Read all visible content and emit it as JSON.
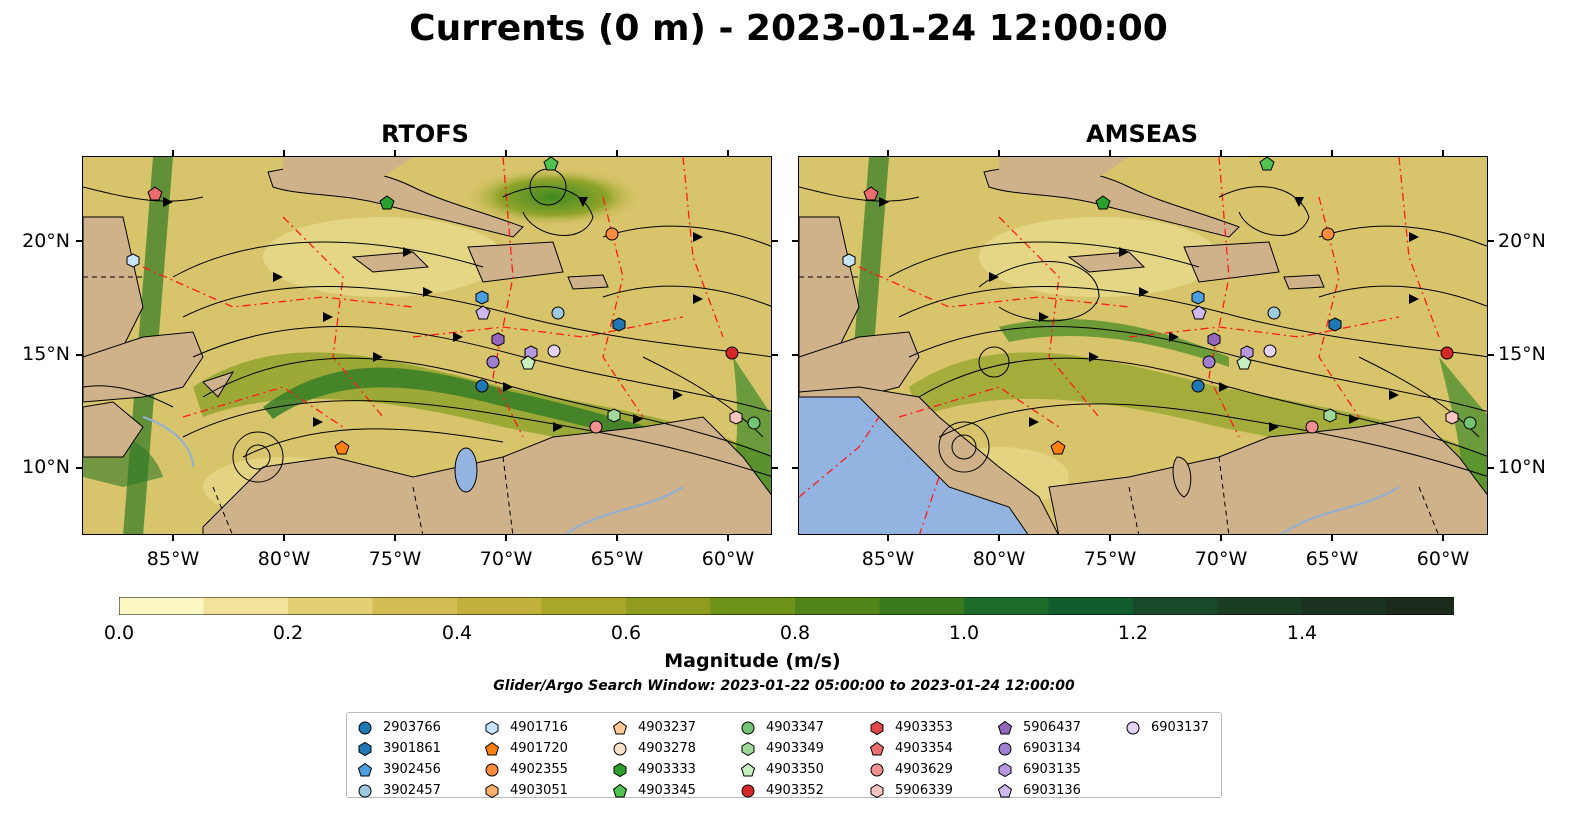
{
  "title": "Currents (0 m) - 2023-01-24 12:00:00",
  "panels": [
    {
      "title": "RTOFS"
    },
    {
      "title": "AMSEAS"
    }
  ],
  "lon_ticks": [
    "85°W",
    "80°W",
    "75°W",
    "70°W",
    "65°W",
    "60°W"
  ],
  "lat_ticks": [
    "20°N",
    "15°N",
    "10°N"
  ],
  "colorbar": {
    "label": "Magnitude (m/s)",
    "tick_labels": [
      "0.0",
      "0.2",
      "0.4",
      "0.6",
      "0.8",
      "1.0",
      "1.2",
      "1.4"
    ],
    "colors": [
      "#fdf7c3",
      "#f2e39a",
      "#e3cf74",
      "#d4bd54",
      "#c2b03c",
      "#aaa62a",
      "#8f9c1e",
      "#6f9219",
      "#518419",
      "#3a7a1e",
      "#1f6b2a",
      "#125c2e",
      "#174a2a",
      "#1b3d24",
      "#1c3220",
      "#1c2a1c"
    ]
  },
  "search_window": "Glider/Argo Search Window: 2023-01-22 05:00:00 to 2023-01-24 12:00:00",
  "colors": {
    "land": "#cfb18a",
    "water_inland": "#93b4e0",
    "eez_line": "#ff1a1a"
  },
  "legend": [
    {
      "id": "2903766",
      "shape": "circle",
      "color": "#1f77b4"
    },
    {
      "id": "3901861",
      "shape": "hexagon",
      "color": "#1f77b4"
    },
    {
      "id": "3902456",
      "shape": "pentagon",
      "color": "#4a9fe0"
    },
    {
      "id": "3902457",
      "shape": "circle",
      "color": "#9ecae1"
    },
    {
      "id": "4901716",
      "shape": "hexagon",
      "color": "#c6e3f7"
    },
    {
      "id": "4901720",
      "shape": "pentagon",
      "color": "#ff7f0e"
    },
    {
      "id": "4902355",
      "shape": "circle",
      "color": "#fd8d3c"
    },
    {
      "id": "4903051",
      "shape": "hexagon",
      "color": "#fdae6b"
    },
    {
      "id": "4903237",
      "shape": "pentagon",
      "color": "#fdc894"
    },
    {
      "id": "4903278",
      "shape": "circle",
      "color": "#fde0c5"
    },
    {
      "id": "4903333",
      "shape": "hexagon",
      "color": "#2ca02c"
    },
    {
      "id": "4903345",
      "shape": "pentagon",
      "color": "#4fc24f"
    },
    {
      "id": "4903347",
      "shape": "circle",
      "color": "#74c476"
    },
    {
      "id": "4903349",
      "shape": "hexagon",
      "color": "#a1d99b"
    },
    {
      "id": "4903350",
      "shape": "pentagon",
      "color": "#c7f0c0"
    },
    {
      "id": "4903352",
      "shape": "circle",
      "color": "#d62728"
    },
    {
      "id": "4903353",
      "shape": "hexagon",
      "color": "#e0474a"
    },
    {
      "id": "4903354",
      "shape": "pentagon",
      "color": "#ea6c6c"
    },
    {
      "id": "4903629",
      "shape": "circle",
      "color": "#f09090"
    },
    {
      "id": "5906339",
      "shape": "hexagon",
      "color": "#f7c4c0"
    },
    {
      "id": "5906437",
      "shape": "pentagon",
      "color": "#9467bd"
    },
    {
      "id": "6903134",
      "shape": "circle",
      "color": "#a17fd0"
    },
    {
      "id": "6903135",
      "shape": "hexagon",
      "color": "#b898e0"
    },
    {
      "id": "6903136",
      "shape": "pentagon",
      "color": "#d0b8f0"
    },
    {
      "id": "6903137",
      "shape": "circle",
      "color": "#e5d2f7"
    }
  ]
}
